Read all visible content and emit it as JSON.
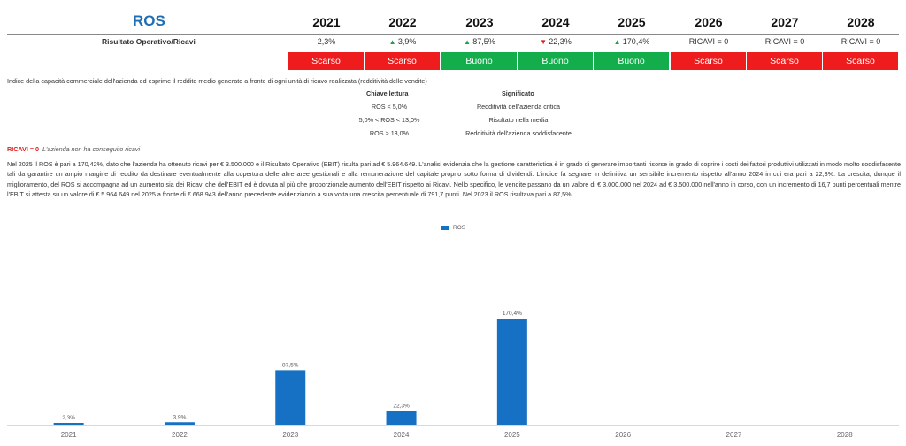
{
  "header": {
    "title": "ROS",
    "years": [
      "2021",
      "2022",
      "2023",
      "2024",
      "2025",
      "2026",
      "2027",
      "2028"
    ]
  },
  "metric": {
    "label": "Risultato Operativo/Ricavi",
    "values": [
      {
        "text": "2,3%",
        "trend": ""
      },
      {
        "text": "3,9%",
        "trend": "up"
      },
      {
        "text": "87,5%",
        "trend": "up"
      },
      {
        "text": "22,3%",
        "trend": "down"
      },
      {
        "text": "170,4%",
        "trend": "up"
      },
      {
        "text": "RICAVI = 0",
        "trend": ""
      },
      {
        "text": "RICAVI = 0",
        "trend": ""
      },
      {
        "text": "RICAVI = 0",
        "trend": ""
      }
    ],
    "judgements": [
      "Scarso",
      "Scarso",
      "Buono",
      "Buono",
      "Buono",
      "Scarso",
      "Scarso",
      "Scarso"
    ],
    "colors": {
      "good": "#13ad4b",
      "bad": "#ee1c1c",
      "up": "#1aa54a",
      "down": "#d81e1e"
    }
  },
  "description": "Indice della capacità commerciale dell'azienda ed esprime il reddito medio generato a fronte di ogni unità di ricavo realizzata (redditività delle vendite)",
  "key": {
    "head_left": "Chiave lettura",
    "head_right": "Significato",
    "rows": [
      {
        "range": "ROS < 5,0%",
        "meaning": "Redditività dell'azienda critica"
      },
      {
        "range": "5,0% < ROS < 13,0%",
        "meaning": "Risultato nella media"
      },
      {
        "range": "ROS > 13,0%",
        "meaning": "Redditività dell'azienda soddisfacente"
      }
    ]
  },
  "ricavi_note": {
    "key": "RICAVI = 0",
    "text": "L'azienda non ha conseguito ricavi"
  },
  "paragraph": "Nel 2025 il ROS è pari a 170,42%, dato che l'azienda ha ottenuto ricavi per € 3.500.000 e il Risultato Operativo (EBIT) risulta pari ad € 5.964.649. L'analisi evidenzia che la gestione caratteristica è in grado di generare importanti risorse in grado di coprire i costi dei fattori produttivi utilizzati in modo molto soddisfacente tali da garantire un ampio margine di reddito da destinare eventualmente alla copertura delle altre aree gestionali e alla remunerazione del capitale proprio sotto forma di dividendi. L'indice fa segnare in definitiva un sensibile incremento rispetto all'anno 2024 in cui era pari a 22,3%. La crescita, dunque il miglioramento, del ROS si accompagna ad un aumento sia dei Ricavi che dell'EBIT ed è dovuta al più che proporzionale aumento dell'EBIT rispetto ai Ricavi. Nello specifico, le vendite passano da un valore di € 3.000.000 nel 2024 ad € 3.500.000 nell'anno in corso, con un incremento di 16,7 punti percentuali mentre l'EBIT si attesta su un valore di € 5.964.649 nel 2025 a fronte di € 668.943 dell'anno precedente evidenziando a sua volta una crescita percentuale di 791,7 punti. Nel 2023 il ROS risultava pari a 87,5%.",
  "chart_data": {
    "type": "bar",
    "categories": [
      "2021",
      "2022",
      "2023",
      "2024",
      "2025",
      "2026",
      "2027",
      "2028"
    ],
    "series": [
      {
        "name": "ROS",
        "values": [
          2.3,
          3.9,
          87.5,
          22.3,
          170.4,
          null,
          null,
          null
        ],
        "labels": [
          "2,3%",
          "3,9%",
          "87,5%",
          "22,3%",
          "170,4%",
          "",
          "",
          ""
        ],
        "color": "#1670c4"
      }
    ],
    "legend": "top-center",
    "grid": false,
    "ylim": [
      0,
      200
    ]
  }
}
